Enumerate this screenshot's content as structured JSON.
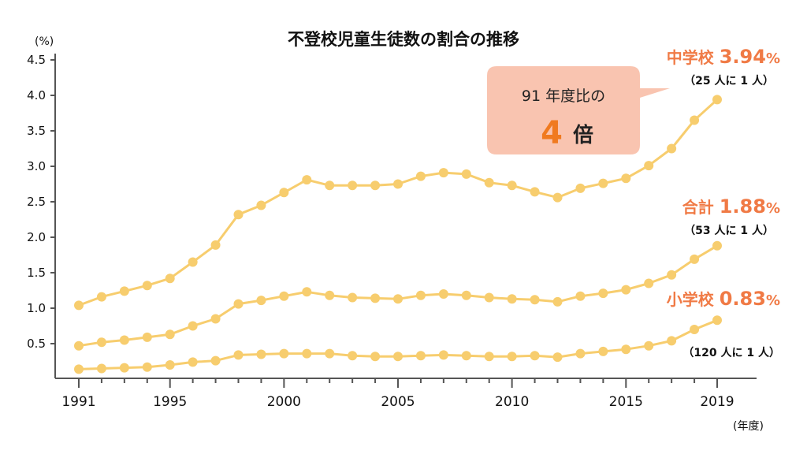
{
  "chart_data": {
    "type": "line",
    "title": "不登校児童生徒数の割合の推移",
    "ylabel": "(%)",
    "xlabel": "(年度)",
    "ylim": [
      0,
      4.5
    ],
    "yticks": [
      "0.5",
      "1.0",
      "1.5",
      "2.0",
      "2.5",
      "3.0",
      "3.5",
      "4.0",
      "4.5"
    ],
    "ytick_values": [
      0.5,
      1.0,
      1.5,
      2.0,
      2.5,
      3.0,
      3.5,
      4.0,
      4.5
    ],
    "xlim": [
      1991,
      2019
    ],
    "xticks": [
      "1991",
      "1995",
      "2000",
      "2005",
      "2010",
      "2015",
      "2019"
    ],
    "xtick_values": [
      1991,
      1995,
      2000,
      2005,
      2010,
      2015,
      2019
    ],
    "x": [
      1991,
      1992,
      1993,
      1994,
      1995,
      1996,
      1997,
      1998,
      1999,
      2000,
      2001,
      2002,
      2003,
      2004,
      2005,
      2006,
      2007,
      2008,
      2009,
      2010,
      2011,
      2012,
      2013,
      2014,
      2015,
      2016,
      2017,
      2018,
      2019
    ],
    "grid": false,
    "line_color": "#f7cd6e",
    "label_color": "#f07a45",
    "series": [
      {
        "name": "中学校",
        "value_label": "3.94",
        "pct": "%",
        "ratio": "（25 人に 1 人）",
        "values": [
          1.04,
          1.16,
          1.24,
          1.32,
          1.42,
          1.65,
          1.89,
          2.32,
          2.45,
          2.63,
          2.81,
          2.73,
          2.73,
          2.73,
          2.75,
          2.86,
          2.91,
          2.89,
          2.77,
          2.73,
          2.64,
          2.56,
          2.69,
          2.76,
          2.83,
          3.01,
          3.25,
          3.65,
          3.94
        ]
      },
      {
        "name": "合計",
        "value_label": "1.88",
        "pct": "%",
        "ratio": "（53 人に 1 人）",
        "values": [
          0.47,
          0.52,
          0.55,
          0.59,
          0.63,
          0.75,
          0.85,
          1.06,
          1.11,
          1.17,
          1.23,
          1.18,
          1.15,
          1.14,
          1.13,
          1.18,
          1.2,
          1.18,
          1.15,
          1.13,
          1.12,
          1.09,
          1.17,
          1.21,
          1.26,
          1.35,
          1.47,
          1.69,
          1.88
        ]
      },
      {
        "name": "小学校",
        "value_label": "0.83",
        "pct": "%",
        "ratio": "（120 人に 1 人）",
        "values": [
          0.14,
          0.15,
          0.16,
          0.17,
          0.2,
          0.24,
          0.26,
          0.34,
          0.35,
          0.36,
          0.36,
          0.36,
          0.33,
          0.32,
          0.32,
          0.33,
          0.34,
          0.33,
          0.32,
          0.32,
          0.33,
          0.31,
          0.36,
          0.39,
          0.42,
          0.47,
          0.54,
          0.7,
          0.83
        ]
      }
    ],
    "callout": {
      "line1": "91 年度比の",
      "big": "4",
      "unit": "倍",
      "fill": "#f9c4b0"
    }
  }
}
